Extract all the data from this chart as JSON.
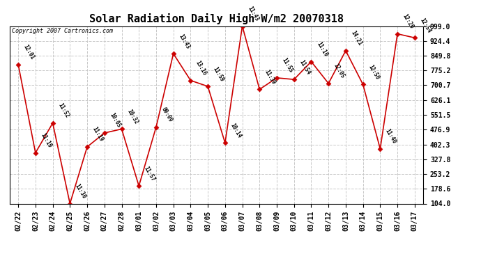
{
  "title": "Solar Radiation Daily High W/m2 20070318",
  "copyright": "Copyright 2007 Cartronics.com",
  "dates": [
    "02/22",
    "02/23",
    "02/24",
    "02/25",
    "02/26",
    "02/27",
    "02/28",
    "03/01",
    "03/02",
    "03/03",
    "03/04",
    "03/05",
    "03/06",
    "03/07",
    "03/08",
    "03/09",
    "03/10",
    "03/11",
    "03/12",
    "03/13",
    "03/14",
    "03/15",
    "03/16",
    "03/17"
  ],
  "values": [
    805,
    360,
    510,
    104,
    390,
    460,
    480,
    193,
    490,
    860,
    725,
    695,
    410,
    999,
    680,
    738,
    730,
    820,
    710,
    875,
    705,
    380,
    960,
    940
  ],
  "labels": [
    "12:01",
    "11:19",
    "11:52",
    "11:30",
    "11:19",
    "10:05",
    "10:32",
    "11:57",
    "09:09",
    "13:43",
    "13:16",
    "11:59",
    "10:14",
    "11:43",
    "11:39",
    "11:55",
    "11:54",
    "11:10",
    "12:05",
    "14:21",
    "12:50",
    "11:40",
    "12:29",
    "12:54"
  ],
  "line_color": "#cc0000",
  "marker_color": "#cc0000",
  "bg_color": "#ffffff",
  "grid_color": "#c8c8c8",
  "title_color": "#000000",
  "label_color": "#000000",
  "tick_label_color": "#000000",
  "ylim_min": 104.0,
  "ylim_max": 999.0,
  "yticks": [
    104.0,
    178.6,
    253.2,
    327.8,
    402.3,
    476.9,
    551.5,
    626.1,
    700.7,
    775.2,
    849.8,
    924.4,
    999.0
  ]
}
